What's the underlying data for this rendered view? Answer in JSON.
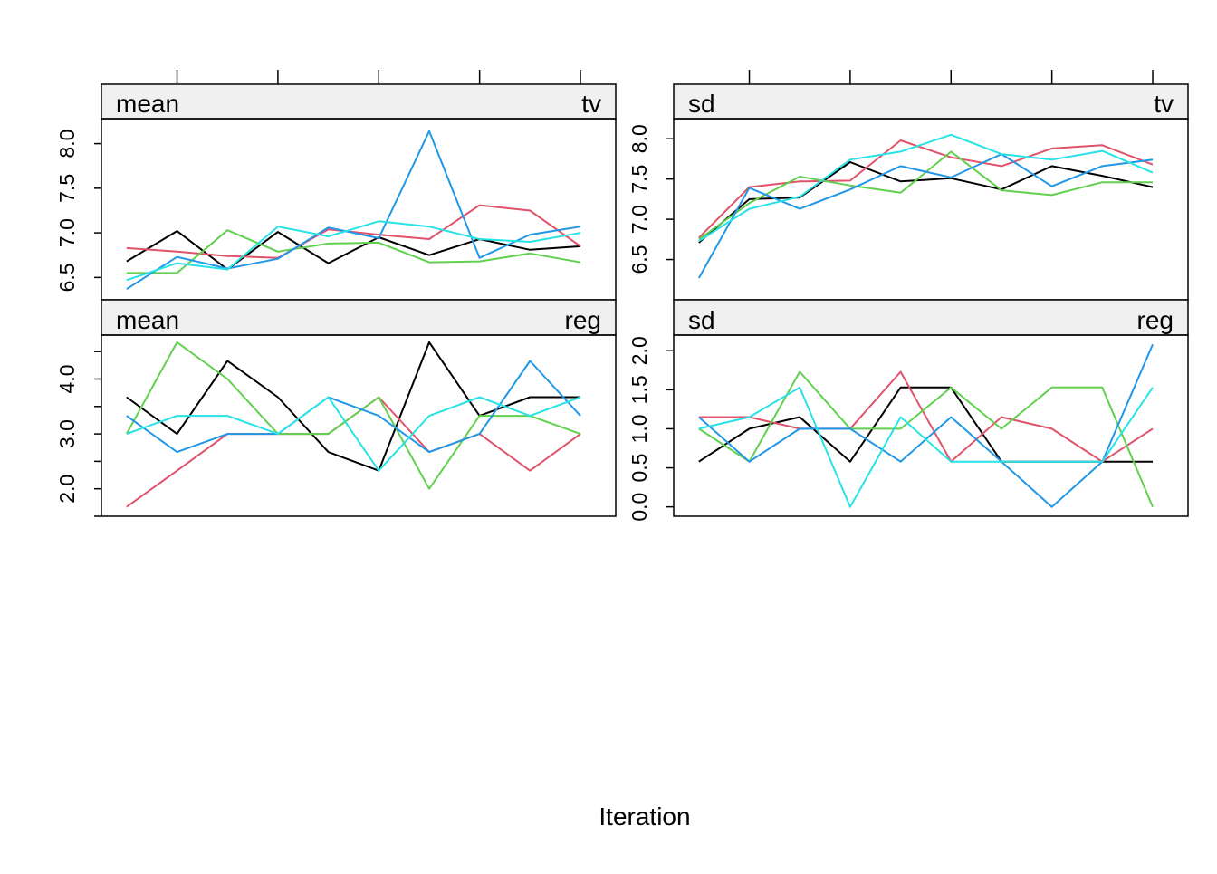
{
  "colors": {
    "series": [
      "#000000",
      "#DF536B",
      "#61D04F",
      "#2297E6",
      "#28E2E5"
    ],
    "strip_background": "#F0F0F0",
    "frame": "#000000"
  },
  "chart_data": {
    "type": "line",
    "xlabel": "Iteration",
    "x": [
      1,
      2,
      3,
      4,
      5,
      6,
      7,
      8,
      9,
      10
    ],
    "xlim": [
      0.5,
      10.7
    ],
    "grid": false,
    "legend": "none",
    "panels": [
      {
        "id": "mean-tv",
        "stat": "mean",
        "variable": "tv",
        "ylim": [
          6.25,
          8.28
        ],
        "yticks": [
          6.5,
          7.0,
          7.5,
          8.0
        ],
        "yticklabels": [
          "6.5",
          "7.0",
          "7.5",
          "8.0"
        ],
        "series": [
          {
            "values": [
              6.68,
              7.02,
              6.59,
              7.01,
              6.66,
              6.95,
              6.75,
              6.93,
              6.81,
              6.85
            ]
          },
          {
            "values": [
              6.83,
              6.79,
              6.74,
              6.72,
              7.04,
              6.98,
              6.93,
              7.31,
              7.25,
              6.85
            ]
          },
          {
            "values": [
              6.55,
              6.55,
              7.03,
              6.79,
              6.88,
              6.89,
              6.67,
              6.68,
              6.77,
              6.67
            ]
          },
          {
            "values": [
              6.37,
              6.73,
              6.6,
              6.71,
              7.06,
              6.94,
              8.14,
              6.72,
              6.98,
              7.07
            ]
          },
          {
            "values": [
              6.47,
              6.66,
              6.59,
              7.07,
              6.96,
              7.13,
              7.07,
              6.93,
              6.9,
              7.0
            ]
          }
        ]
      },
      {
        "id": "sd-tv",
        "stat": "sd",
        "variable": "tv",
        "ylim": [
          6.0,
          8.25
        ],
        "yticks": [
          6.5,
          7.0,
          7.5,
          8.0
        ],
        "yticklabels": [
          "6.5",
          "7.0",
          "7.5",
          "8.0"
        ],
        "series": [
          {
            "values": [
              6.71,
              7.25,
              7.27,
              7.71,
              7.47,
              7.51,
              7.37,
              7.66,
              7.54,
              7.4
            ]
          },
          {
            "values": [
              6.77,
              7.4,
              7.47,
              7.48,
              7.98,
              7.77,
              7.66,
              7.88,
              7.92,
              7.68
            ]
          },
          {
            "values": [
              6.75,
              7.2,
              7.53,
              7.42,
              7.33,
              7.84,
              7.36,
              7.3,
              7.46,
              7.46
            ]
          },
          {
            "values": [
              6.27,
              7.39,
              7.13,
              7.37,
              7.66,
              7.52,
              7.81,
              7.41,
              7.66,
              7.74
            ]
          },
          {
            "values": [
              6.73,
              7.13,
              7.28,
              7.74,
              7.84,
              8.05,
              7.81,
              7.74,
              7.85,
              7.58
            ]
          }
        ]
      },
      {
        "id": "mean-reg",
        "stat": "mean",
        "variable": "reg",
        "ylim": [
          1.5,
          4.8
        ],
        "yticks": [
          1.5,
          2.0,
          2.5,
          3.0,
          3.5,
          4.0,
          4.5
        ],
        "yticklabels": [
          "",
          "2.0",
          "",
          "3.0",
          "",
          "4.0",
          ""
        ],
        "series": [
          {
            "values": [
              3.67,
              3.0,
              4.33,
              3.67,
              2.67,
              2.33,
              4.67,
              3.33,
              3.67,
              3.67
            ]
          },
          {
            "values": [
              1.67,
              2.33,
              3.0,
              3.0,
              3.0,
              3.67,
              2.67,
              3.0,
              2.33,
              3.0
            ]
          },
          {
            "values": [
              3.0,
              4.67,
              4.0,
              3.0,
              3.0,
              3.67,
              2.0,
              3.33,
              3.33,
              3.0
            ]
          },
          {
            "values": [
              3.33,
              2.67,
              3.0,
              3.0,
              3.67,
              3.33,
              2.67,
              3.0,
              4.33,
              3.33
            ]
          },
          {
            "values": [
              3.0,
              3.33,
              3.33,
              3.0,
              3.67,
              2.33,
              3.33,
              3.67,
              3.33,
              3.67
            ]
          }
        ]
      },
      {
        "id": "sd-reg",
        "stat": "sd",
        "variable": "reg",
        "ylim": [
          -0.12,
          2.2
        ],
        "yticks": [
          0.0,
          0.5,
          1.0,
          1.5,
          2.0
        ],
        "yticklabels": [
          "0.0",
          "0.5",
          "1.0",
          "1.5",
          "2.0"
        ],
        "series": [
          {
            "values": [
              0.58,
              1.0,
              1.15,
              0.58,
              1.53,
              1.53,
              0.58,
              0.58,
              0.58,
              0.58
            ]
          },
          {
            "values": [
              1.15,
              1.15,
              1.0,
              1.0,
              1.73,
              0.58,
              1.15,
              1.0,
              0.58,
              1.0
            ]
          },
          {
            "values": [
              1.0,
              0.58,
              1.73,
              1.0,
              1.0,
              1.53,
              1.0,
              1.53,
              1.53,
              0.0
            ]
          },
          {
            "values": [
              1.15,
              0.58,
              1.0,
              1.0,
              0.58,
              1.15,
              0.58,
              0.0,
              0.58,
              2.08
            ]
          },
          {
            "values": [
              1.0,
              1.15,
              1.53,
              0.0,
              1.15,
              0.58,
              0.58,
              0.58,
              0.58,
              1.53
            ]
          }
        ]
      }
    ],
    "top_xticks": [
      2,
      4,
      6,
      8,
      10
    ]
  }
}
